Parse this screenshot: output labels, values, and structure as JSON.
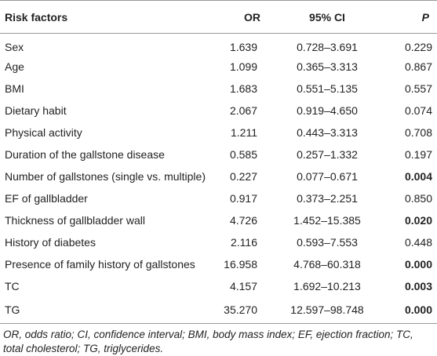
{
  "table": {
    "header": [
      "Risk factors",
      "OR",
      "95% CI",
      "P"
    ],
    "rows": [
      [
        "Sex",
        "1.639",
        "0.728–3.691",
        "0.229"
      ],
      [
        "Age",
        "1.099",
        "0.365–3.313",
        "0.867"
      ],
      [
        "BMI",
        "1.683",
        "0.551–5.135",
        "0.557"
      ],
      [
        "Dietary habit",
        "2.067",
        "0.919–4.650",
        "0.074"
      ],
      [
        "Physical activity",
        "1.211",
        "0.443–3.313",
        "0.708"
      ],
      [
        "Duration of the gallstone disease",
        "0.585",
        "0.257–1.332",
        "0.197"
      ],
      [
        "Number of gallstones (single vs. multiple)",
        "0.227",
        "0.077–0.671",
        "0.004"
      ],
      [
        "EF of gallbladder",
        "0.917",
        "0.373–2.251",
        "0.850"
      ],
      [
        "Thickness of gallbladder wall",
        "4.726",
        "1.452–15.385",
        "0.020"
      ],
      [
        "History of diabetes",
        "2.116",
        "0.593–7.553",
        "0.448"
      ],
      [
        "Presence of family history of gallstones",
        "16.958",
        "4.768–60.318",
        "0.000"
      ],
      [
        "TC",
        "4.157",
        "1.692–10.213",
        "0.003"
      ],
      [
        "TG",
        "35.270",
        "12.597–98.748",
        "0.000"
      ]
    ],
    "bold_p_rows": [
      6,
      8,
      10,
      11,
      12
    ]
  },
  "footnote": "OR, odds ratio; CI, confidence interval; BMI, body mass index; EF, ejection fraction; TC, total cholesterol; TG, triglycerides."
}
